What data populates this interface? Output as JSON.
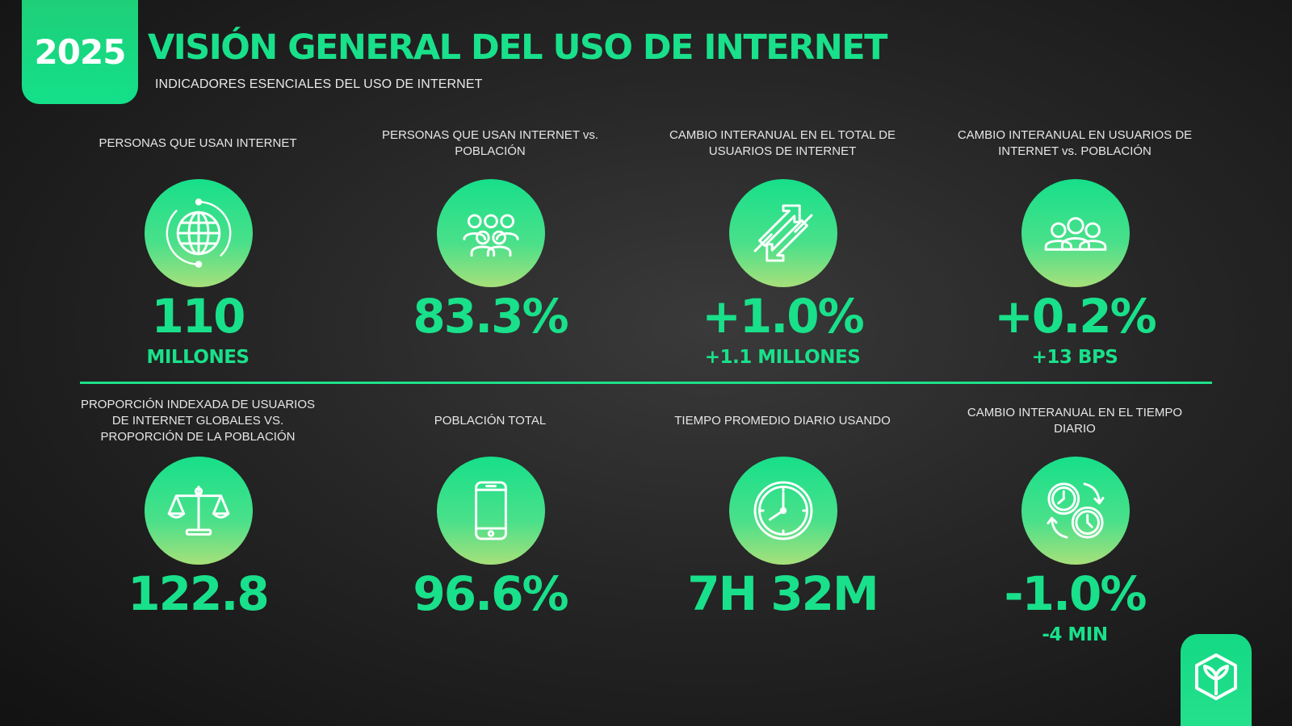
{
  "header": {
    "year": "2025",
    "title": "VISIÓN GENERAL DEL USO DE INTERNET",
    "subtitle": "INDICADORES ESENCIALES DEL USO DE INTERNET"
  },
  "colors": {
    "accent": "#19e08a",
    "background": "#1e1e1e",
    "text": "#ffffff"
  },
  "stats_top": [
    {
      "label": "PERSONAS QUE USAN INTERNET",
      "icon": "globe-icon",
      "value": "110",
      "sub": "MILLONES"
    },
    {
      "label": "PERSONAS QUE USAN INTERNET vs. POBLACIÓN",
      "icon": "people-group-icon",
      "value": "83.3%",
      "sub": ""
    },
    {
      "label": "CAMBIO INTERANUAL EN EL TOTAL DE USUARIOS DE INTERNET",
      "icon": "up-down-arrows-icon",
      "value": "+1.0%",
      "sub": "+1.1 MILLONES"
    },
    {
      "label": "CAMBIO INTERANUAL EN USUARIOS DE INTERNET vs. POBLACIÓN",
      "icon": "three-people-icon",
      "value": "+0.2%",
      "sub": "+13 BPS"
    }
  ],
  "stats_bottom": [
    {
      "label": "PROPORCIÓN INDEXADA DE USUARIOS DE INTERNET GLOBALES VS. PROPORCIÓN DE LA POBLACIÓN",
      "icon": "balance-scale-icon",
      "value": "122.8",
      "sub": ""
    },
    {
      "label": "POBLACIÓN TOTAL",
      "icon": "smartphone-icon",
      "value": "96.6%",
      "sub": ""
    },
    {
      "label": "TIEMPO PROMEDIO DIARIO USANDO",
      "icon": "clock-icon",
      "value": "7H 32M",
      "sub": ""
    },
    {
      "label": "CAMBIO INTERANUAL EN EL TIEMPO DIARIO",
      "icon": "clocks-cycle-icon",
      "value": "-1.0%",
      "sub": "-4 MIN"
    }
  ],
  "brand": {
    "icon": "cube-leaf-logo-icon"
  }
}
